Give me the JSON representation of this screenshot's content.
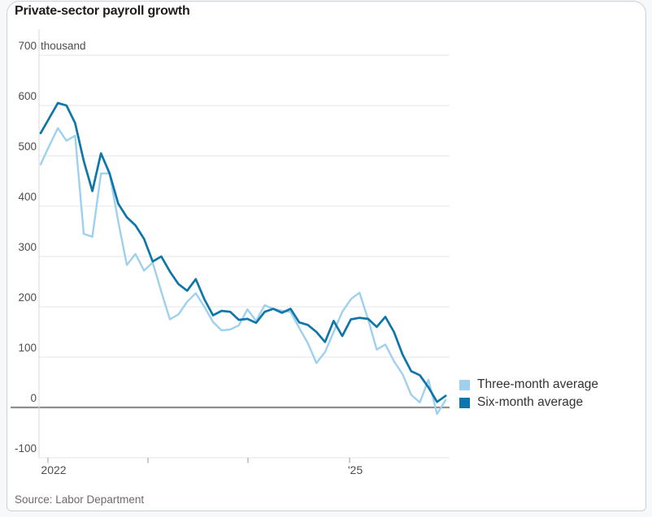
{
  "header": {
    "title": "Private-sector payroll growth"
  },
  "source": {
    "text": "Source: Labor Department"
  },
  "legend": {
    "items": [
      {
        "label": "Three-month average",
        "color": "#9fd0ee"
      },
      {
        "label": "Six-month average",
        "color": "#0e76a8"
      }
    ]
  },
  "chart_data": {
    "type": "line",
    "title": "Private-sector payroll growth",
    "unit": "thousand",
    "unit_label": "thousand",
    "x_start": "Jan 2022",
    "x_end": "Dec 2025",
    "x_tick_labels": [
      "2022",
      "",
      "",
      "'25"
    ],
    "y_ticks": [
      700,
      600,
      500,
      400,
      300,
      200,
      100,
      0,
      -100
    ],
    "ylim": [
      -100,
      700
    ],
    "grid": true,
    "zero_baseline": true,
    "legend_position": "right-middle",
    "series": [
      {
        "name": "Three-month average",
        "color": "#9fd0ee",
        "values": [
          483,
          520,
          555,
          530,
          540,
          345,
          339,
          465,
          465,
          370,
          283,
          305,
          272,
          288,
          230,
          175,
          185,
          210,
          227,
          200,
          170,
          153,
          155,
          163,
          195,
          172,
          203,
          196,
          192,
          190,
          158,
          128,
          88,
          110,
          150,
          190,
          215,
          228,
          175,
          115,
          125,
          92,
          66,
          25,
          10,
          55,
          -13,
          15
        ]
      },
      {
        "name": "Six-month average",
        "color": "#0e76a8",
        "values": [
          545,
          575,
          605,
          600,
          565,
          490,
          430,
          505,
          465,
          405,
          378,
          362,
          335,
          290,
          300,
          270,
          245,
          232,
          255,
          215,
          183,
          192,
          190,
          174,
          176,
          168,
          190,
          196,
          188,
          196,
          169,
          164,
          150,
          130,
          172,
          142,
          175,
          178,
          176,
          160,
          180,
          150,
          105,
          72,
          64,
          40,
          11,
          23
        ]
      }
    ]
  }
}
